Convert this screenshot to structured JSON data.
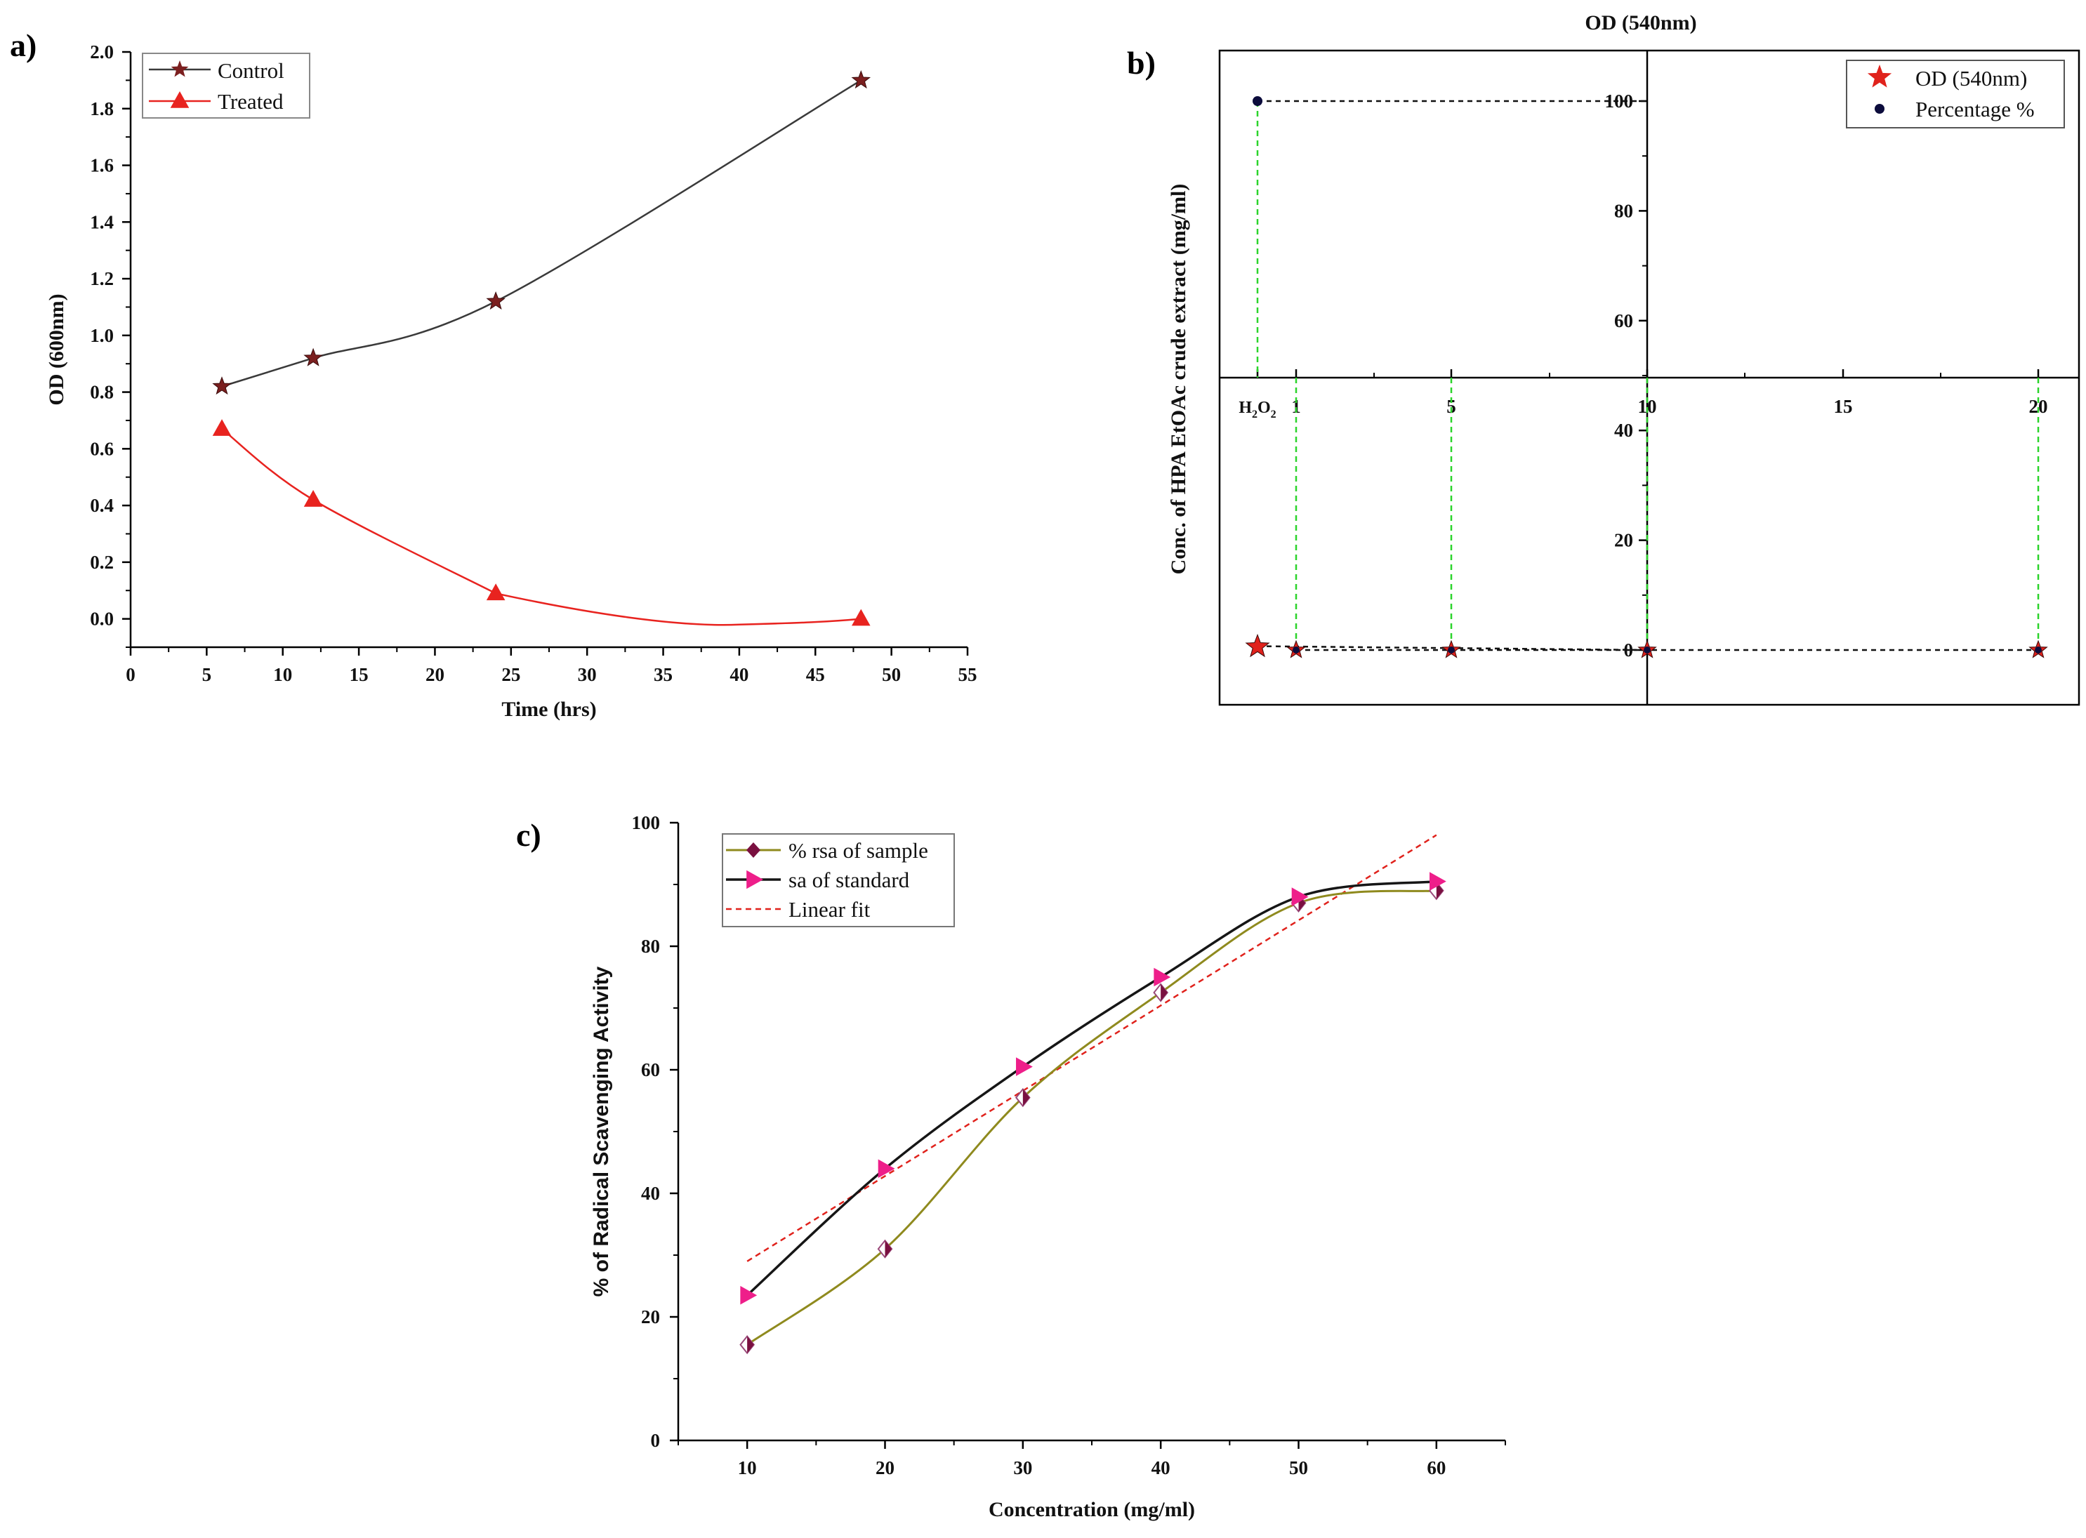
{
  "panel_labels": [
    "a)",
    "b)",
    "c)"
  ],
  "chart_data": [
    {
      "id": "a",
      "type": "line",
      "title": "",
      "xlabel": "Time (hrs)",
      "ylabel": "OD (600nm)",
      "xlim": [
        0,
        55
      ],
      "ylim": [
        -0.1,
        2.0
      ],
      "xticks": [
        0,
        5,
        10,
        15,
        20,
        25,
        30,
        35,
        40,
        45,
        50,
        55
      ],
      "yticks": [
        "0.0",
        "0.2",
        "0.4",
        "0.6",
        "0.8",
        "1.0",
        "1.2",
        "1.4",
        "1.6",
        "1.8",
        "2.0"
      ],
      "legend_position": "top-left",
      "series": [
        {
          "name": "Control",
          "color": "#7b1f1f",
          "marker": "star",
          "x": [
            6,
            12,
            24,
            48
          ],
          "y": [
            0.82,
            0.92,
            1.12,
            1.9
          ]
        },
        {
          "name": "Treated",
          "color": "#e8231f",
          "marker": "triangle",
          "x": [
            6,
            12,
            24,
            48
          ],
          "y": [
            0.67,
            0.42,
            0.09,
            0.0
          ]
        }
      ]
    },
    {
      "id": "b",
      "type": "scatter",
      "title": "OD (540nm)",
      "ylabel": "Conc. of HPA EtOAc crude extract (mg/ml)",
      "xlim": [
        -2,
        22
      ],
      "xticks": [
        "H2O2",
        "1",
        "5",
        "10",
        "15",
        "20"
      ],
      "yticks": [
        "0",
        "20",
        "40",
        "60",
        "80",
        "100"
      ],
      "ylim": [
        -10,
        110
      ],
      "legend_position": "top-right",
      "series": [
        {
          "name": "OD (540nm)",
          "color": "#e0221c",
          "marker": "star",
          "x": [
            0,
            1,
            5,
            10,
            20
          ],
          "y": [
            0.6,
            0,
            0,
            0,
            0
          ]
        },
        {
          "name": "Percentage %",
          "color": "#0c0c3c",
          "marker": "circle",
          "x": [
            0,
            1,
            5,
            10,
            20
          ],
          "y": [
            100,
            0,
            0,
            0,
            0
          ]
        }
      ]
    },
    {
      "id": "c",
      "type": "line",
      "title": "",
      "xlabel": "Concentration (mg/ml)",
      "ylabel": "% of Radical Scavenging Activity",
      "xlim": [
        5,
        65
      ],
      "ylim": [
        0,
        100
      ],
      "xticks": [
        10,
        20,
        30,
        40,
        50,
        60
      ],
      "yticks": [
        0,
        20,
        40,
        60,
        80,
        100
      ],
      "legend_position": "top-left",
      "categories": [
        10,
        20,
        30,
        40,
        50,
        60
      ],
      "series": [
        {
          "name": "% rsa of sample",
          "color": "#8f8a1e",
          "marker": "diamond",
          "values": [
            15.5,
            31,
            55.5,
            72.5,
            87,
            89
          ]
        },
        {
          "name": "sa of standard",
          "color": "#161616",
          "marker": "right-triangle",
          "values": [
            23.5,
            44,
            60.5,
            75,
            88,
            90.5
          ]
        },
        {
          "name": "Linear fit",
          "color": "#e0221c",
          "marker": "none",
          "x": [
            10,
            60
          ],
          "y": [
            29,
            98
          ]
        }
      ]
    }
  ]
}
